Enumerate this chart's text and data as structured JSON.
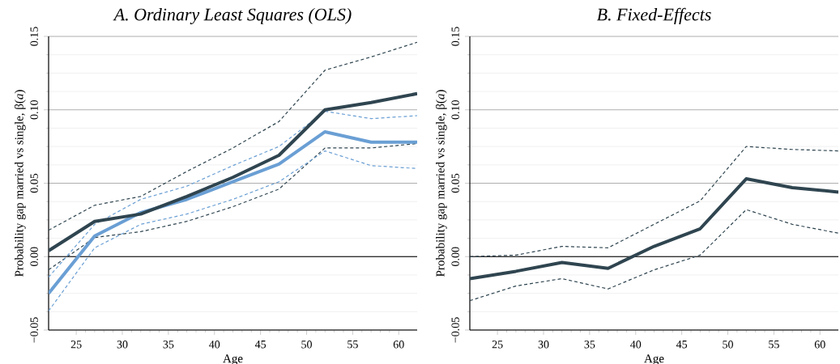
{
  "chart_data": [
    {
      "type": "line",
      "title": "A. Ordinary Least Squares (OLS)",
      "xlabel": "Age",
      "ylabel": "Probability gap married vs single, β(*a*)",
      "x": [
        22,
        27,
        32,
        37,
        42,
        47,
        52,
        57,
        62
      ],
      "series": [
        {
          "color": "#2f4550",
          "line_style": "dashed",
          "values": [
            0.018,
            0.035,
            0.041,
            0.058,
            0.074,
            0.092,
            0.127,
            0.136,
            0.146
          ]
        },
        {
          "color": "#2f4550",
          "line_style": "dashed",
          "values": [
            -0.009,
            0.013,
            0.017,
            0.024,
            0.034,
            0.046,
            0.074,
            0.074,
            0.077
          ]
        },
        {
          "color": "#6a9fd4",
          "line_style": "dashed",
          "values": [
            -0.014,
            0.022,
            0.039,
            0.048,
            0.062,
            0.075,
            0.099,
            0.094,
            0.096
          ]
        },
        {
          "color": "#6a9fd4",
          "line_style": "dashed",
          "values": [
            -0.037,
            0.006,
            0.022,
            0.029,
            0.039,
            0.051,
            0.072,
            0.062,
            0.06
          ]
        },
        {
          "color": "#6a9fd4",
          "line_style": "solid",
          "values": [
            -0.025,
            0.014,
            0.03,
            0.039,
            0.051,
            0.063,
            0.085,
            0.078,
            0.078
          ]
        },
        {
          "color": "#2f4550",
          "line_style": "solid",
          "values": [
            0.004,
            0.024,
            0.029,
            0.041,
            0.054,
            0.069,
            0.1,
            0.105,
            0.111
          ]
        }
      ],
      "xlim": [
        22,
        62
      ],
      "ylim": [
        -0.05,
        0.15
      ],
      "xticks": [
        25,
        30,
        35,
        40,
        45,
        50,
        55,
        60
      ],
      "yticks": [
        {
          "value": -0.05,
          "label": "−0.05"
        },
        {
          "value": 0,
          "label": "0.00"
        },
        {
          "value": 0.05,
          "label": "0.05"
        },
        {
          "value": 0.1,
          "label": "0.10"
        },
        {
          "value": 0.15,
          "label": "0.15"
        }
      ],
      "grid": "y",
      "ref_lines": [
        {
          "axis": "y",
          "value": 0,
          "color": "#000000"
        }
      ]
    },
    {
      "type": "line",
      "title": "B. Fixed-Effects",
      "xlabel": "Age",
      "ylabel": "Probability gap married vs single, β(*a*)",
      "x": [
        22,
        27,
        32,
        37,
        42,
        47,
        52,
        57,
        62
      ],
      "series": [
        {
          "color": "#2f4550",
          "line_style": "dashed",
          "values": [
            0.0,
            0.001,
            0.007,
            0.006,
            0.022,
            0.038,
            0.075,
            0.073,
            0.072
          ]
        },
        {
          "color": "#2f4550",
          "line_style": "dashed",
          "values": [
            -0.03,
            -0.02,
            -0.015,
            -0.022,
            -0.009,
            0.001,
            0.032,
            0.022,
            0.016
          ]
        },
        {
          "color": "#2f4550",
          "line_style": "solid",
          "values": [
            -0.015,
            -0.01,
            -0.004,
            -0.008,
            0.007,
            0.019,
            0.053,
            0.047,
            0.044
          ]
        }
      ],
      "xlim": [
        22,
        62
      ],
      "ylim": [
        -0.05,
        0.15
      ],
      "xticks": [
        25,
        30,
        35,
        40,
        45,
        50,
        55,
        60
      ],
      "yticks": [
        {
          "value": -0.05,
          "label": "−0.05"
        },
        {
          "value": 0,
          "label": "0.00"
        },
        {
          "value": 0.05,
          "label": "0.05"
        },
        {
          "value": 0.1,
          "label": "0.10"
        },
        {
          "value": 0.15,
          "label": "0.15"
        }
      ],
      "grid": "y",
      "ref_lines": [
        {
          "axis": "y",
          "value": 0,
          "color": "#000000"
        }
      ]
    }
  ]
}
